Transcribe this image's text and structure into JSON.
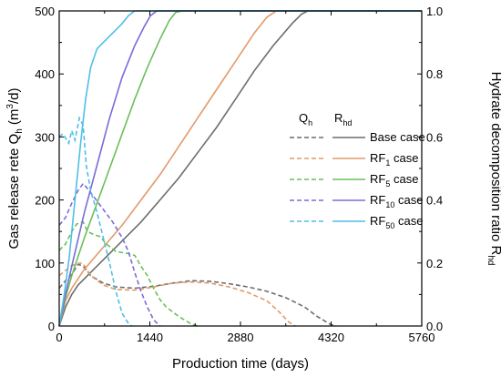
{
  "chart_data": {
    "type": "line",
    "title": "",
    "xlabel": "Production time (days)",
    "ylabel_left": {
      "main": "Gas release rete Q",
      "sub": "h",
      "unit_open": " (m",
      "unit_sup": "3",
      "unit_close": "/d)"
    },
    "ylabel_right": {
      "main": "Hydrate decomposition ratio R",
      "sub": "hd"
    },
    "xlim": [
      0,
      5760
    ],
    "ylim_left": [
      0,
      500
    ],
    "ylim_right": [
      0,
      1.0
    ],
    "x_ticks": [
      "0",
      "1440",
      "2880",
      "4320",
      "5760"
    ],
    "y_left_ticks": [
      "0",
      "100",
      "200",
      "300",
      "400",
      "500"
    ],
    "y_right_ticks": [
      "0.0",
      "0.2",
      "0.4",
      "0.6",
      "0.8",
      "1.0"
    ],
    "grid": false,
    "legend": {
      "position": "right-middle",
      "header_left": {
        "main": "Q",
        "sub": "h"
      },
      "header_right": {
        "main": "R",
        "sub": "hd"
      },
      "entries": [
        {
          "main": "Base case",
          "sub": "",
          "tail": ""
        },
        {
          "main": "RF",
          "sub": "1",
          "tail": "  case"
        },
        {
          "main": "RF",
          "sub": "5",
          "tail": "  case"
        },
        {
          "main": "RF",
          "sub": "10",
          "tail": "  case"
        },
        {
          "main": "RF",
          "sub": "50",
          "tail": "  case"
        }
      ]
    },
    "series": [
      {
        "name": "Base case",
        "color": "#6d6d6d",
        "Q": [
          [
            0,
            60
          ],
          [
            100,
            72
          ],
          [
            200,
            82
          ],
          [
            300,
            98
          ],
          [
            380,
            95
          ],
          [
            500,
            80
          ],
          [
            700,
            68
          ],
          [
            900,
            62
          ],
          [
            1200,
            60
          ],
          [
            1500,
            63
          ],
          [
            1800,
            68
          ],
          [
            2100,
            72
          ],
          [
            2400,
            71
          ],
          [
            2700,
            67
          ],
          [
            3000,
            62
          ],
          [
            3300,
            55
          ],
          [
            3600,
            45
          ],
          [
            3900,
            30
          ],
          [
            4100,
            15
          ],
          [
            4300,
            3
          ],
          [
            4400,
            0
          ]
        ],
        "R": [
          [
            0,
            0
          ],
          [
            100,
            0.06
          ],
          [
            200,
            0.1
          ],
          [
            300,
            0.13
          ],
          [
            500,
            0.17
          ],
          [
            700,
            0.21
          ],
          [
            1000,
            0.27
          ],
          [
            1300,
            0.33
          ],
          [
            1600,
            0.4
          ],
          [
            1900,
            0.47
          ],
          [
            2200,
            0.55
          ],
          [
            2500,
            0.63
          ],
          [
            2800,
            0.72
          ],
          [
            3100,
            0.81
          ],
          [
            3400,
            0.89
          ],
          [
            3700,
            0.96
          ],
          [
            3850,
            0.99
          ],
          [
            3950,
            1.0
          ],
          [
            5760,
            1.0
          ]
        ]
      },
      {
        "name": "RF1 case",
        "color": "#e19a6a",
        "Q": [
          [
            0,
            80
          ],
          [
            100,
            88
          ],
          [
            200,
            96
          ],
          [
            330,
            100
          ],
          [
            380,
            99
          ],
          [
            500,
            80
          ],
          [
            700,
            65
          ],
          [
            900,
            58
          ],
          [
            1200,
            57
          ],
          [
            1500,
            62
          ],
          [
            1800,
            68
          ],
          [
            2100,
            70
          ],
          [
            2400,
            68
          ],
          [
            2700,
            62
          ],
          [
            3000,
            53
          ],
          [
            3300,
            40
          ],
          [
            3500,
            22
          ],
          [
            3650,
            6
          ],
          [
            3750,
            0
          ]
        ],
        "R": [
          [
            0,
            0
          ],
          [
            100,
            0.08
          ],
          [
            200,
            0.12
          ],
          [
            400,
            0.18
          ],
          [
            700,
            0.25
          ],
          [
            1000,
            0.32
          ],
          [
            1300,
            0.4
          ],
          [
            1600,
            0.48
          ],
          [
            1900,
            0.57
          ],
          [
            2200,
            0.66
          ],
          [
            2500,
            0.75
          ],
          [
            2800,
            0.84
          ],
          [
            3100,
            0.93
          ],
          [
            3300,
            0.98
          ],
          [
            3450,
            1.0
          ],
          [
            5760,
            1.0
          ]
        ]
      },
      {
        "name": "RF5 case",
        "color": "#6abf5a",
        "Q": [
          [
            0,
            120
          ],
          [
            100,
            130
          ],
          [
            200,
            150
          ],
          [
            280,
            162
          ],
          [
            380,
            165
          ],
          [
            450,
            150
          ],
          [
            550,
            145
          ],
          [
            650,
            142
          ],
          [
            750,
            130
          ],
          [
            900,
            118
          ],
          [
            1100,
            115
          ],
          [
            1200,
            112
          ],
          [
            1300,
            95
          ],
          [
            1400,
            80
          ],
          [
            1500,
            60
          ],
          [
            1600,
            42
          ],
          [
            1700,
            30
          ],
          [
            1900,
            15
          ],
          [
            2100,
            3
          ],
          [
            2200,
            0
          ]
        ],
        "R": [
          [
            0,
            0
          ],
          [
            100,
            0.09
          ],
          [
            200,
            0.16
          ],
          [
            400,
            0.28
          ],
          [
            600,
            0.39
          ],
          [
            800,
            0.5
          ],
          [
            1000,
            0.61
          ],
          [
            1200,
            0.72
          ],
          [
            1400,
            0.82
          ],
          [
            1600,
            0.91
          ],
          [
            1750,
            0.97
          ],
          [
            1850,
            0.995
          ],
          [
            1950,
            1.0
          ],
          [
            5760,
            1.0
          ]
        ]
      },
      {
        "name": "RF10 case",
        "color": "#7b6cd6",
        "Q": [
          [
            0,
            160
          ],
          [
            100,
            172
          ],
          [
            200,
            195
          ],
          [
            300,
            215
          ],
          [
            380,
            226
          ],
          [
            450,
            218
          ],
          [
            550,
            205
          ],
          [
            700,
            185
          ],
          [
            850,
            165
          ],
          [
            1000,
            140
          ],
          [
            1100,
            118
          ],
          [
            1200,
            85
          ],
          [
            1300,
            55
          ],
          [
            1400,
            30
          ],
          [
            1500,
            10
          ],
          [
            1600,
            0
          ]
        ],
        "R": [
          [
            0,
            0
          ],
          [
            100,
            0.1
          ],
          [
            200,
            0.19
          ],
          [
            400,
            0.36
          ],
          [
            600,
            0.51
          ],
          [
            800,
            0.66
          ],
          [
            1000,
            0.79
          ],
          [
            1200,
            0.89
          ],
          [
            1350,
            0.95
          ],
          [
            1450,
            0.985
          ],
          [
            1550,
            1.0
          ],
          [
            5760,
            1.0
          ]
        ]
      },
      {
        "name": "RF50 case",
        "color": "#4fbfe6",
        "Q": [
          [
            0,
            300
          ],
          [
            60,
            305
          ],
          [
            150,
            290
          ],
          [
            200,
            310
          ],
          [
            250,
            295
          ],
          [
            320,
            330
          ],
          [
            380,
            318
          ],
          [
            430,
            255
          ],
          [
            500,
            215
          ],
          [
            600,
            180
          ],
          [
            700,
            140
          ],
          [
            800,
            100
          ],
          [
            900,
            55
          ],
          [
            1000,
            20
          ],
          [
            1100,
            4
          ],
          [
            1150,
            0
          ]
        ],
        "R": [
          [
            0,
            0
          ],
          [
            80,
            0.1
          ],
          [
            160,
            0.22
          ],
          [
            250,
            0.4
          ],
          [
            340,
            0.58
          ],
          [
            420,
            0.72
          ],
          [
            500,
            0.82
          ],
          [
            600,
            0.88
          ],
          [
            700,
            0.9
          ],
          [
            800,
            0.92
          ],
          [
            900,
            0.94
          ],
          [
            1000,
            0.96
          ],
          [
            1100,
            0.985
          ],
          [
            1200,
            1.0
          ],
          [
            5760,
            1.0
          ]
        ]
      }
    ]
  }
}
